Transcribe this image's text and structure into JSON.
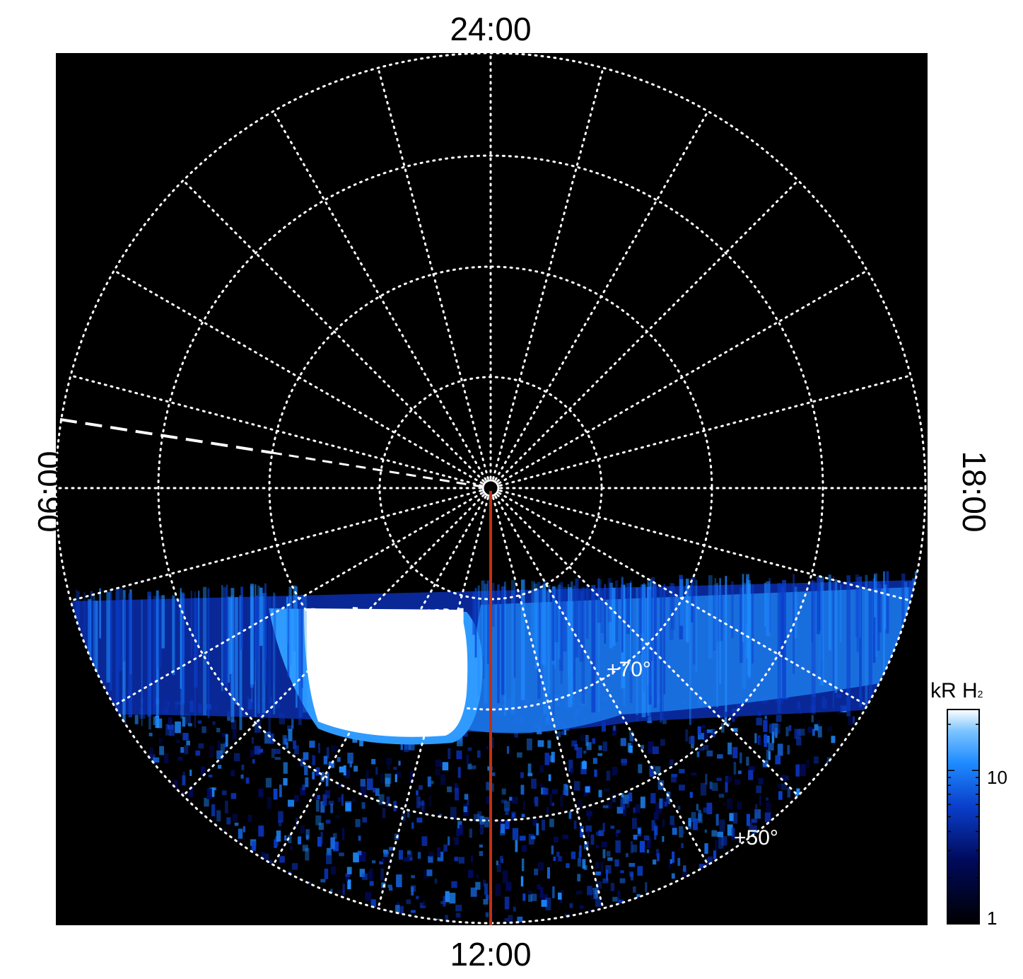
{
  "figure": {
    "time_labels": {
      "top": "24:00",
      "bottom": "12:00",
      "left": "06:00",
      "right": "18:00"
    },
    "latitude_labels": {
      "lat70": "+70°",
      "lat50": "+50°"
    },
    "colorbar": {
      "title_main": "kR H",
      "title_sub": "2",
      "ticks": {
        "t10": "10",
        "t1": "1"
      },
      "colors": [
        "#000000",
        "#000a5c",
        "#0a3fcc",
        "#1e8bff",
        "#7cc4ff",
        "#ffffff"
      ]
    },
    "colors": {
      "grid": "#ffffff",
      "marker_line": "#c03010",
      "background": "#000000"
    }
  }
}
